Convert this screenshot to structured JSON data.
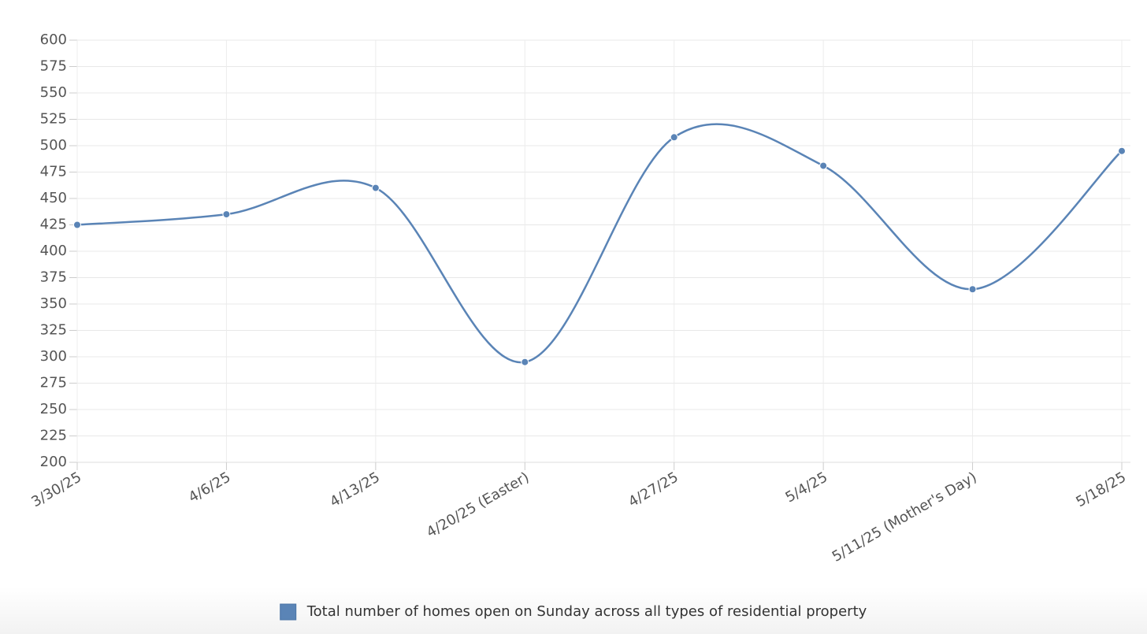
{
  "chart_data": {
    "type": "line",
    "categories": [
      "3/30/25",
      "4/6/25",
      "4/13/25",
      "4/20/25 (Easter)",
      "4/27/25",
      "5/4/25",
      "5/11/25 (Mother's Day)",
      "5/18/25"
    ],
    "series": [
      {
        "name": "Total number of homes open on Sunday across all types of residential property",
        "color": "#5a84b6",
        "values": [
          425,
          435,
          460,
          295,
          508,
          481,
          364,
          495
        ]
      }
    ],
    "ylim": [
      200,
      600
    ],
    "yticks": [
      200,
      225,
      250,
      275,
      300,
      325,
      350,
      375,
      400,
      425,
      450,
      475,
      500,
      525,
      550,
      575,
      600
    ],
    "grid": true,
    "legend": "bottom"
  }
}
